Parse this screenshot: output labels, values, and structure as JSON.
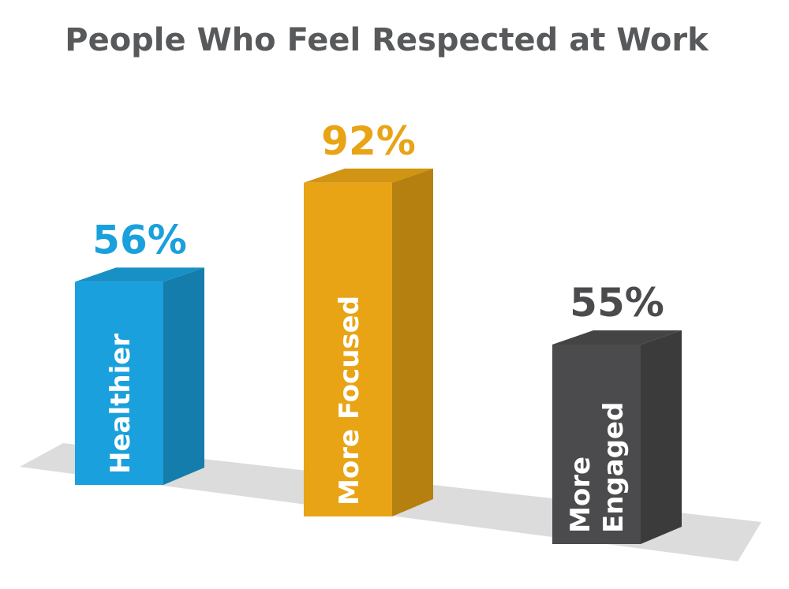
{
  "chart_data": {
    "type": "bar3d",
    "title": "People Who Feel Respected at Work",
    "categories": [
      "Healthier",
      "More Focused",
      "More Engaged"
    ],
    "values": [
      56,
      92,
      55
    ],
    "value_labels": [
      "56%",
      "92%",
      "55%"
    ],
    "colors": [
      "#1aa0dc",
      "#e8a415",
      "#4b4b4d"
    ],
    "label_colors": [
      "#1aa0dc",
      "#e8a415",
      "#4b4b4d"
    ]
  }
}
